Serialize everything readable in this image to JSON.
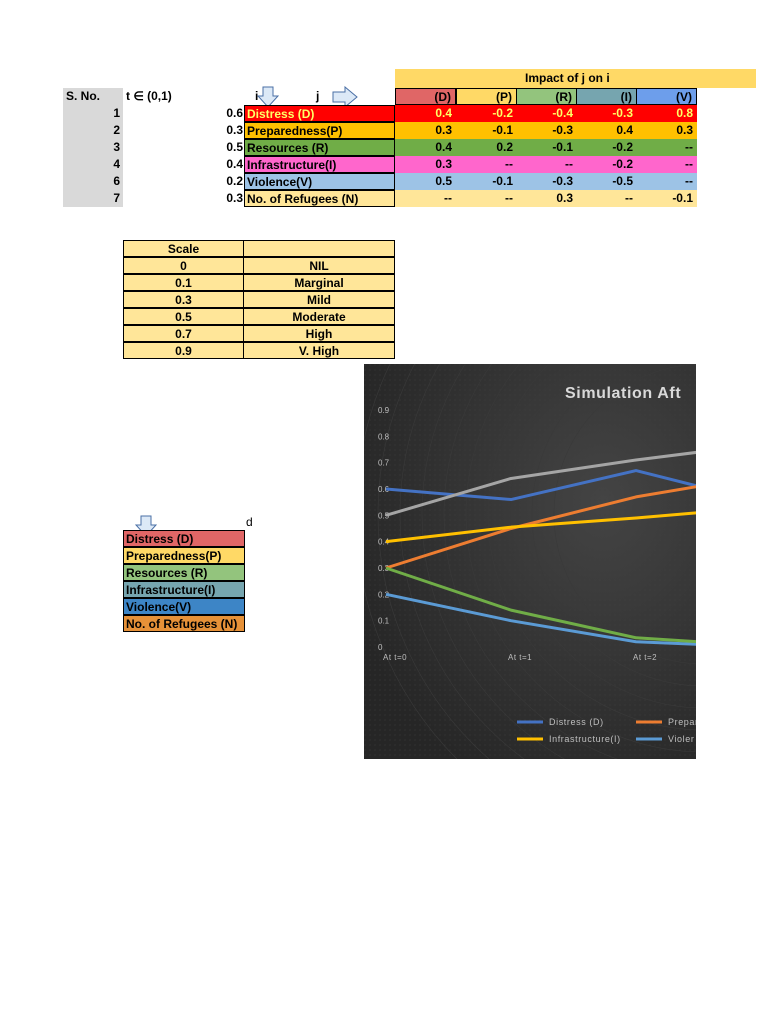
{
  "header": {
    "impact_title": "Impact of j on i",
    "sno_label": "S. No.",
    "t_label": "t ∈ (0,1)",
    "i_label": "i",
    "j_label": "j",
    "col_headers": [
      "(D)",
      "(P)",
      "(R)",
      "(I)",
      "(V)"
    ],
    "col_colors": [
      "#e06666",
      "#ffd966",
      "#93c47d",
      "#76a5af",
      "#6d9eeb"
    ]
  },
  "rows": [
    {
      "sno": "1",
      "t": "0.6",
      "name": "Distress (D)",
      "color": "#ff0000",
      "vals": [
        "0.4",
        "-0.2",
        "-0.4",
        "-0.3",
        "0.8"
      ]
    },
    {
      "sno": "2",
      "t": "0.3",
      "name": "Preparedness(P)",
      "color": "#ffc000",
      "vals": [
        "0.3",
        "-0.1",
        "-0.3",
        "0.4",
        "0.3"
      ]
    },
    {
      "sno": "3",
      "t": "0.5",
      "name": "Resources (R)",
      "color": "#70ad47",
      "vals": [
        "0.4",
        "0.2",
        "-0.1",
        "-0.2",
        "--"
      ]
    },
    {
      "sno": "4",
      "t": "0.4",
      "name": "Infrastructure(I)",
      "color": "#ff66cc",
      "vals": [
        "0.3",
        "--",
        "--",
        "-0.2",
        "--"
      ]
    },
    {
      "sno": "6",
      "t": "0.2",
      "name": "Violence(V)",
      "color": "#9dc3e6",
      "vals": [
        "0.5",
        "-0.1",
        "-0.3",
        "-0.5",
        "--"
      ]
    },
    {
      "sno": "7",
      "t": "0.3",
      "name": "No. of Refugees (N)",
      "color": "#ffe699",
      "vals": [
        "--",
        "--",
        "0.3",
        "--",
        "-0.1"
      ]
    }
  ],
  "scale": {
    "header": "Scale",
    "rows": [
      {
        "value": "0",
        "label": "NIL"
      },
      {
        "value": "0.1",
        "label": "Marginal"
      },
      {
        "value": "0.3",
        "label": "Mild"
      },
      {
        "value": "0.5",
        "label": "Moderate"
      },
      {
        "value": "0.7",
        "label": "High"
      },
      {
        "value": "0.9",
        "label": "V. High"
      }
    ]
  },
  "legend_table": {
    "d_label": "d",
    "items": [
      {
        "name": "Distress (D)",
        "color": "#e06666"
      },
      {
        "name": "Preparedness(P)",
        "color": "#ffd966"
      },
      {
        "name": "Resources (R)",
        "color": "#93c47d"
      },
      {
        "name": "Infrastructure(I)",
        "color": "#76a5af"
      },
      {
        "name": "Violence(V)",
        "color": "#3d85c6"
      },
      {
        "name": "No. of Refugees (N)",
        "color": "#e69138"
      }
    ]
  },
  "chart_data": {
    "type": "line",
    "title": "Simulation Aft",
    "categories": [
      "At t=0",
      "At t=1",
      "At t=2"
    ],
    "x": [
      0,
      1,
      2,
      2.5
    ],
    "ylim": [
      0,
      0.9
    ],
    "yticks": [
      "0",
      "0.1",
      "0.2",
      "0.3",
      "0.4",
      "0.5",
      "0.6",
      "0.7",
      "0.8",
      "0.9"
    ],
    "grid": false,
    "legend_placement": "bottom",
    "series": [
      {
        "name": "Distress (D)",
        "color": "#4472c4",
        "values": [
          0.6,
          0.56,
          0.67,
          0.61
        ]
      },
      {
        "name": "Prepar",
        "color": "#ed7d31",
        "values": [
          0.3,
          0.45,
          0.57,
          0.61
        ]
      },
      {
        "name": "",
        "color": "#a5a5a5",
        "values": [
          0.5,
          0.64,
          0.71,
          0.74
        ]
      },
      {
        "name": "Infrastructure(I)",
        "color": "#ffc000",
        "values": [
          0.4,
          0.455,
          0.49,
          0.51
        ]
      },
      {
        "name": "Violer",
        "color": "#5b9bd5",
        "values": [
          0.2,
          0.1,
          0.02,
          0.01
        ]
      },
      {
        "name": "",
        "color": "#70ad47",
        "values": [
          0.3,
          0.14,
          0.035,
          0.02
        ]
      }
    ],
    "legend_entries": [
      {
        "name": "Distress (D)",
        "color": "#4472c4"
      },
      {
        "name": "Prepar",
        "color": "#ed7d31"
      },
      {
        "name": "Infrastructure(I)",
        "color": "#ffc000"
      },
      {
        "name": "Violer",
        "color": "#5b9bd5"
      }
    ]
  }
}
